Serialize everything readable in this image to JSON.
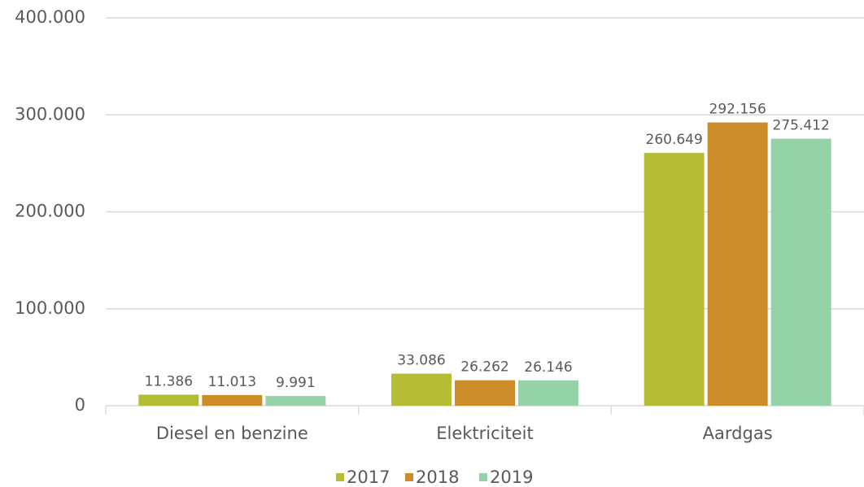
{
  "chart_data": {
    "type": "bar",
    "categories": [
      "Diesel en benzine",
      "Elektriciteit",
      "Aardgas"
    ],
    "series": [
      {
        "name": "2017",
        "color": "#b5bd35",
        "values": [
          11386,
          33086,
          260649
        ],
        "value_labels": [
          "11.386",
          "33.086",
          "260.649"
        ]
      },
      {
        "name": "2018",
        "color": "#cd8c2a",
        "values": [
          11013,
          26262,
          292156
        ],
        "value_labels": [
          "11.013",
          "26.262",
          "292.156"
        ]
      },
      {
        "name": "2019",
        "color": "#96d2a8",
        "values": [
          9991,
          26146,
          275412
        ],
        "value_labels": [
          "9.991",
          "26.146",
          "275.412"
        ]
      }
    ],
    "ylim": [
      0,
      400000
    ],
    "yticks": [
      0,
      {
        "value": 100000,
        "label": "100.000"
      },
      {
        "value": 200000,
        "label": "200.000"
      },
      {
        "value": 300000,
        "label": "300.000"
      },
      {
        "value": 400000,
        "label": "400.000"
      }
    ],
    "grid": true,
    "legend": "bottom"
  }
}
